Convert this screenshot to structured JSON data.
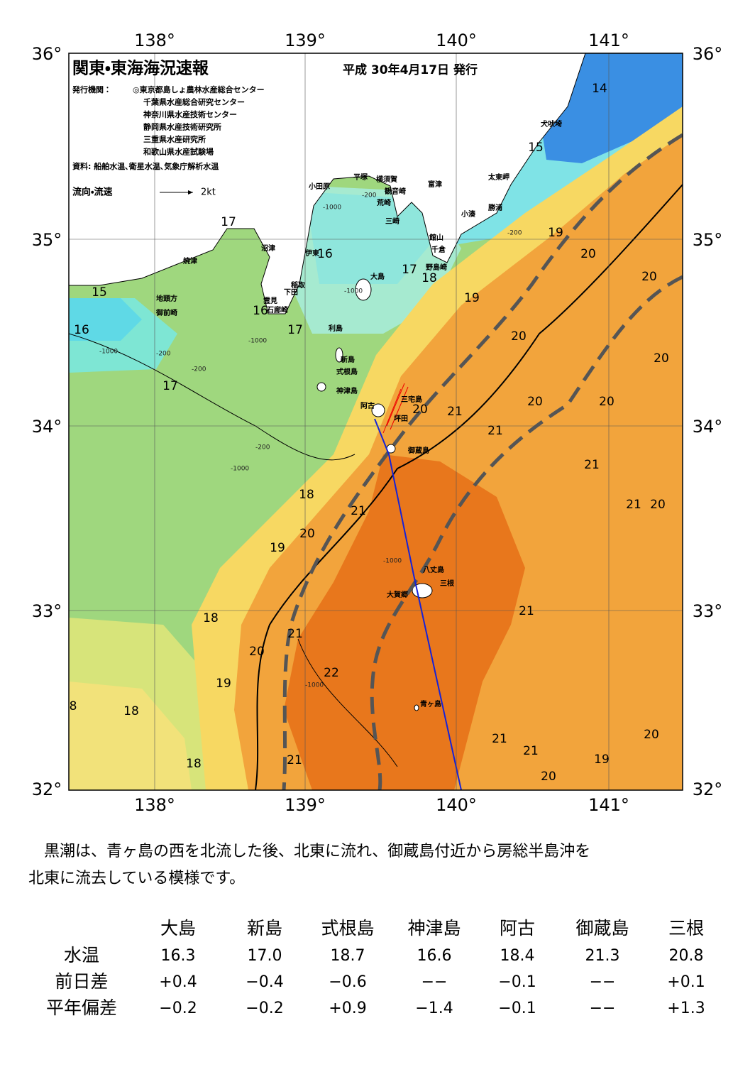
{
  "header": {
    "title": "関東・東海海況速報",
    "date": "平成 30年4月17日 発行",
    "publisher_label": "発行機関：",
    "publishers": [
      "◎東京都島しょ農林水産総合センター",
      "千葉県水産総合研究センター",
      "神奈川県水産技術センター",
      "静岡県水産技術研究所",
      "三重県水産研究所",
      "和歌山県水産試験場"
    ],
    "source": "資料: 船舶水温､衛星水温､気象庁解析水温",
    "legend": "流向・流速",
    "legend_scale": "2kt"
  },
  "map": {
    "lon_labels": [
      "138°",
      "139°",
      "140°",
      "141°"
    ],
    "lat_labels": [
      "36°",
      "35°",
      "34°",
      "33°",
      "32°"
    ],
    "places": [
      "犬吠埼",
      "太東岬",
      "勝浦",
      "小湊",
      "富津",
      "横須賀",
      "観音崎",
      "平塚",
      "小田原",
      "荒崎",
      "三崎",
      "館山",
      "千倉",
      "野島崎",
      "大島",
      "沼津",
      "伊東",
      "焼津",
      "稲取",
      "下田",
      "雲見",
      "石廊崎",
      "地頭方",
      "御前崎",
      "利島",
      "新島",
      "式根島",
      "神津島",
      "阿古",
      "三宅島",
      "坪田",
      "御蔵島",
      "八丈島",
      "三根",
      "大賀郷",
      "青ヶ島"
    ],
    "isotherm_labels": [
      14,
      15,
      17,
      16,
      17,
      18,
      19,
      20,
      20,
      19,
      15,
      16,
      16,
      17,
      20,
      20,
      17,
      20,
      20,
      20,
      21,
      21,
      21,
      18,
      21,
      21,
      20,
      20,
      19,
      21,
      18,
      21,
      20,
      22,
      19,
      8,
      18,
      21,
      21,
      20,
      19,
      18,
      21,
      20
    ],
    "depth_labels": [
      "-200",
      "-1000",
      "-200",
      "-1000",
      "-200",
      "-1000",
      "-200",
      "-1000",
      "-1000",
      "-1000",
      "-1000",
      "-200"
    ]
  },
  "summary": [
    "黒潮は、青ヶ島の西を北流した後、北東に流れ、御蔵島付近から房総半島沖を",
    "北東に流去している模様です。"
  ],
  "table": {
    "columns": [
      "大島",
      "新島",
      "式根島",
      "神津島",
      "阿古",
      "御蔵島",
      "三根"
    ],
    "rows": [
      {
        "label": "水温",
        "values": [
          "16.3",
          "17.0",
          "18.7",
          "16.6",
          "18.4",
          "21.3",
          "20.8"
        ]
      },
      {
        "label": "前日差",
        "values": [
          "+0.4",
          "−0.4",
          "−0.6",
          "−−",
          "−0.1",
          "−−",
          "+0.1"
        ]
      },
      {
        "label": "平年偏差",
        "values": [
          "−0.2",
          "−0.2",
          "+0.9",
          "−1.4",
          "−0.1",
          "−−",
          "+1.3"
        ]
      }
    ]
  }
}
